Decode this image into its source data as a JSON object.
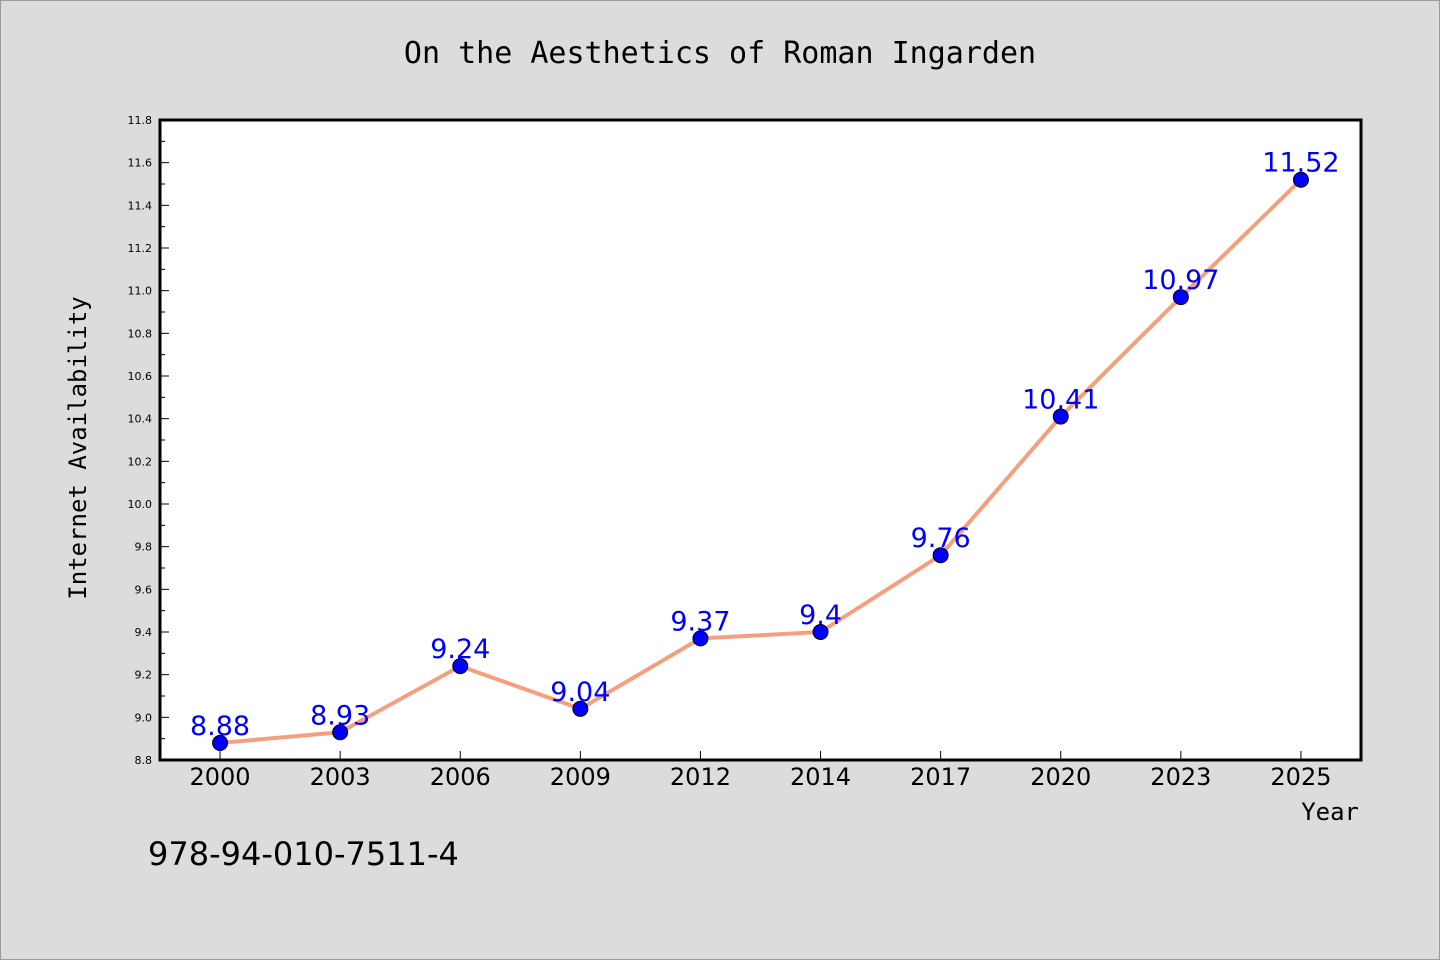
{
  "chart_data": {
    "type": "line",
    "title": "On the Aesthetics of Roman Ingarden",
    "xlabel": "Year",
    "ylabel": "Internet Availability",
    "categories": [
      "2000",
      "2003",
      "2006",
      "2009",
      "2012",
      "2014",
      "2017",
      "2020",
      "2023",
      "2025"
    ],
    "series": [
      {
        "values": [
          8.88,
          8.93,
          9.24,
          9.04,
          9.37,
          9.4,
          9.76,
          10.41,
          10.97,
          11.52
        ],
        "data_labels": [
          "8.88",
          "8.93",
          "9.24",
          "9.04",
          "9.37",
          "9.4",
          "9.76",
          "10.41",
          "10.97",
          "11.52"
        ],
        "line_color": "#f4a07e",
        "marker_color": "#0000ff"
      }
    ],
    "ylim": [
      8.8,
      11.8
    ],
    "yticks": [
      "8.8",
      "9.0",
      "9.2",
      "9.4",
      "9.6",
      "9.8",
      "10.0",
      "10.2",
      "10.4",
      "10.6",
      "10.8",
      "11.0",
      "11.2",
      "11.4",
      "11.6",
      "11.8"
    ],
    "grid": false,
    "legend": "none"
  },
  "footer": {
    "text": "978-94-010-7511-4"
  },
  "colors": {
    "background": "#dcdcdc",
    "plot_background": "#ffffff",
    "data_label": "#0000ff"
  }
}
